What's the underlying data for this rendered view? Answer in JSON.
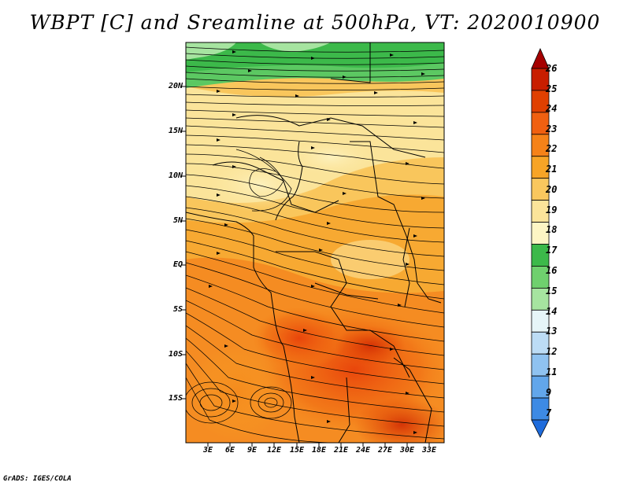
{
  "title": "WBPT [C] and Sreamline at 500hPa, VT: 2020010900",
  "credit": "GrADS: IGES/COLA",
  "map": {
    "lat_labels": [
      "20N",
      "15N",
      "10N",
      "5N",
      "EQ",
      "5S",
      "10S",
      "15S"
    ],
    "lon_labels": [
      "3E",
      "6E",
      "9E",
      "12E",
      "15E",
      "18E",
      "21E",
      "24E",
      "27E",
      "30E",
      "33E"
    ]
  },
  "colorbar": {
    "labels": [
      "26",
      "25",
      "24",
      "23",
      "22",
      "21",
      "20",
      "19",
      "18",
      "17",
      "16",
      "15",
      "14",
      "13",
      "12",
      "11",
      "9",
      "7"
    ],
    "colors": [
      "#a50000",
      "#c81e00",
      "#e04000",
      "#f06010",
      "#f58218",
      "#f7a426",
      "#f9c75e",
      "#fbe49a",
      "#fdf5c4",
      "#3cb94a",
      "#6fd06e",
      "#a6e4a0",
      "#e6f5f8",
      "#bcdcf5",
      "#8fc2f0",
      "#62a6ea",
      "#3d8ae4",
      "#1f6cdc"
    ]
  }
}
